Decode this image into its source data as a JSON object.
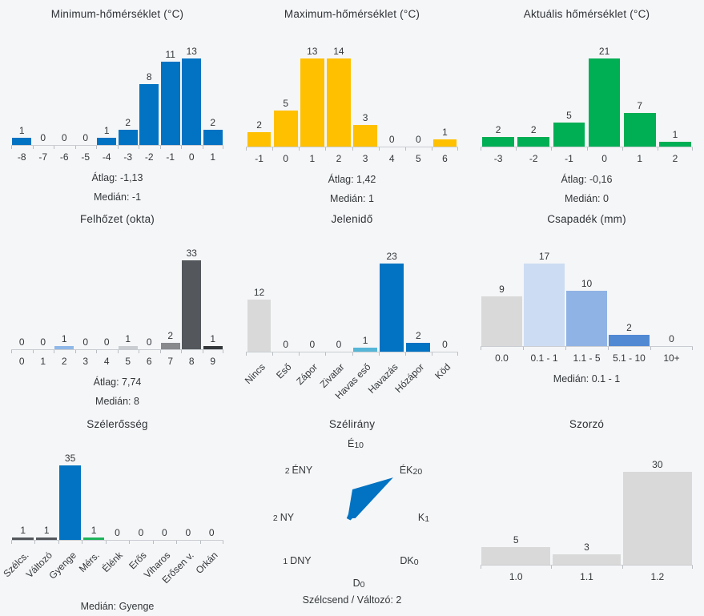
{
  "page": {
    "background": "#F5F6F8",
    "text_color": "#33373A"
  },
  "chart_data": [
    {
      "type": "bar",
      "title": "Minimum-hőmérséklet (°C)",
      "categories": [
        "-8",
        "-7",
        "-6",
        "-5",
        "-4",
        "-3",
        "-2",
        "-1",
        "0",
        "1"
      ],
      "values": [
        1,
        0,
        0,
        0,
        1,
        2,
        8,
        11,
        13,
        2
      ],
      "bar_color": "#0173C2",
      "stats": [
        "Átlag: -1,13",
        "Medián: -1"
      ],
      "ylim": [
        0,
        13
      ],
      "grid": false,
      "legend": "none"
    },
    {
      "type": "bar",
      "title": "Maximum-hőmérséklet (°C)",
      "categories": [
        "-1",
        "0",
        "1",
        "2",
        "3",
        "4",
        "5",
        "6"
      ],
      "values": [
        2,
        5,
        13,
        14,
        3,
        0,
        0,
        1
      ],
      "bar_color": "#FFC000",
      "stats": [
        "Átlag: 1,42",
        "Medián: 1"
      ],
      "ylim": [
        0,
        14
      ],
      "grid": false,
      "legend": "none"
    },
    {
      "type": "bar",
      "title": "Aktuális hőmérséklet (°C)",
      "categories": [
        "-3",
        "-2",
        "-1",
        "0",
        "1",
        "2"
      ],
      "values": [
        2,
        2,
        5,
        21,
        7,
        1
      ],
      "bar_color": "#00AE54",
      "stats": [
        "Átlag: -0,16",
        "Medián: 0"
      ],
      "ylim": [
        0,
        21
      ],
      "grid": false,
      "legend": "none"
    },
    {
      "type": "bar",
      "title": "Felhőzet (okta)",
      "categories": [
        "0",
        "1",
        "2",
        "3",
        "4",
        "5",
        "6",
        "7",
        "8",
        "9"
      ],
      "values": [
        0,
        0,
        1,
        0,
        0,
        1,
        0,
        2,
        33,
        1
      ],
      "bar_colors": [
        "#D9D9D9",
        "#D9D9D9",
        "#8FB8E8",
        "#D9D9D9",
        "#D9D9D9",
        "#C9CDD1",
        "#D9D9D9",
        "#87898C",
        "#54585C",
        "#34383B"
      ],
      "stats": [
        "Átlag: 7,74",
        "Medián: 8"
      ],
      "ylim": [
        0,
        33
      ],
      "grid": false,
      "legend": "none"
    },
    {
      "type": "bar",
      "title": "Jelenidő",
      "categories": [
        "Nincs",
        "Eső",
        "Zápor",
        "Zivatar",
        "Havas eső",
        "Havazás",
        "Hózápor",
        "Köd"
      ],
      "values": [
        12,
        0,
        0,
        0,
        1,
        23,
        2,
        0
      ],
      "bar_colors": [
        "#D9D9D9",
        "#D9D9D9",
        "#D9D9D9",
        "#D9D9D9",
        "#56B6D8",
        "#0173C2",
        "#0173C2",
        "#D9D9D9"
      ],
      "stats": [],
      "ylim": [
        0,
        23
      ],
      "grid": false,
      "legend": "none",
      "xtick_rotation": 45
    },
    {
      "type": "bar",
      "title": "Csapadék (mm)",
      "categories": [
        "0.0",
        "0.1 - 1",
        "1.1 - 5",
        "5.1 - 10",
        "10+"
      ],
      "values": [
        9,
        17,
        10,
        2,
        0
      ],
      "bar_colors": [
        "#D9D9D9",
        "#CCDCF2",
        "#8FB3E4",
        "#5189D3",
        "#5189D3"
      ],
      "stats": [
        "Medián: 0.1 - 1"
      ],
      "ylim": [
        0,
        17
      ],
      "grid": false,
      "legend": "none"
    },
    {
      "type": "bar",
      "title": "Szélerősség",
      "categories": [
        "Szélcs.",
        "Változó",
        "Gyenge",
        "Mérs.",
        "Élénk",
        "Erős",
        "Viharos",
        "Erősen v.",
        "Orkán"
      ],
      "values": [
        1,
        1,
        35,
        1,
        0,
        0,
        0,
        0,
        0
      ],
      "bar_colors": [
        "#54585C",
        "#54585C",
        "#0173C2",
        "#1CB45A",
        "#D9D9D9",
        "#D9D9D9",
        "#D9D9D9",
        "#D9D9D9",
        "#D9D9D9"
      ],
      "stats": [
        "Medián: Gyenge"
      ],
      "ylim": [
        0,
        35
      ],
      "grid": false,
      "legend": "none",
      "xtick_rotation": 45
    },
    {
      "type": "radar",
      "title": "Szélirány",
      "directions": [
        {
          "name": "É",
          "value": 10,
          "value_first": false
        },
        {
          "name": "ÉK",
          "value": 20,
          "value_first": false
        },
        {
          "name": "K",
          "value": 1,
          "value_first": false
        },
        {
          "name": "DK",
          "value": 0,
          "value_first": false
        },
        {
          "name": "D",
          "value": 0,
          "value_first": false
        },
        {
          "name": "DNY",
          "value": 1,
          "value_first": true
        },
        {
          "name": "NY",
          "value": 2,
          "value_first": true
        },
        {
          "name": "ÉNY",
          "value": 2,
          "value_first": true
        }
      ],
      "fill_color": "#0173C2",
      "footer": "Szélcsend / Változó: 2",
      "rmax": 20,
      "legend": "none"
    },
    {
      "type": "bar",
      "title": "Szorzó",
      "categories": [
        "1.0",
        "1.1",
        "1.2"
      ],
      "values": [
        5,
        3,
        30
      ],
      "bar_color": "#D9D9D9",
      "stats": [],
      "ylim": [
        0,
        30
      ],
      "grid": false,
      "legend": "none"
    }
  ]
}
